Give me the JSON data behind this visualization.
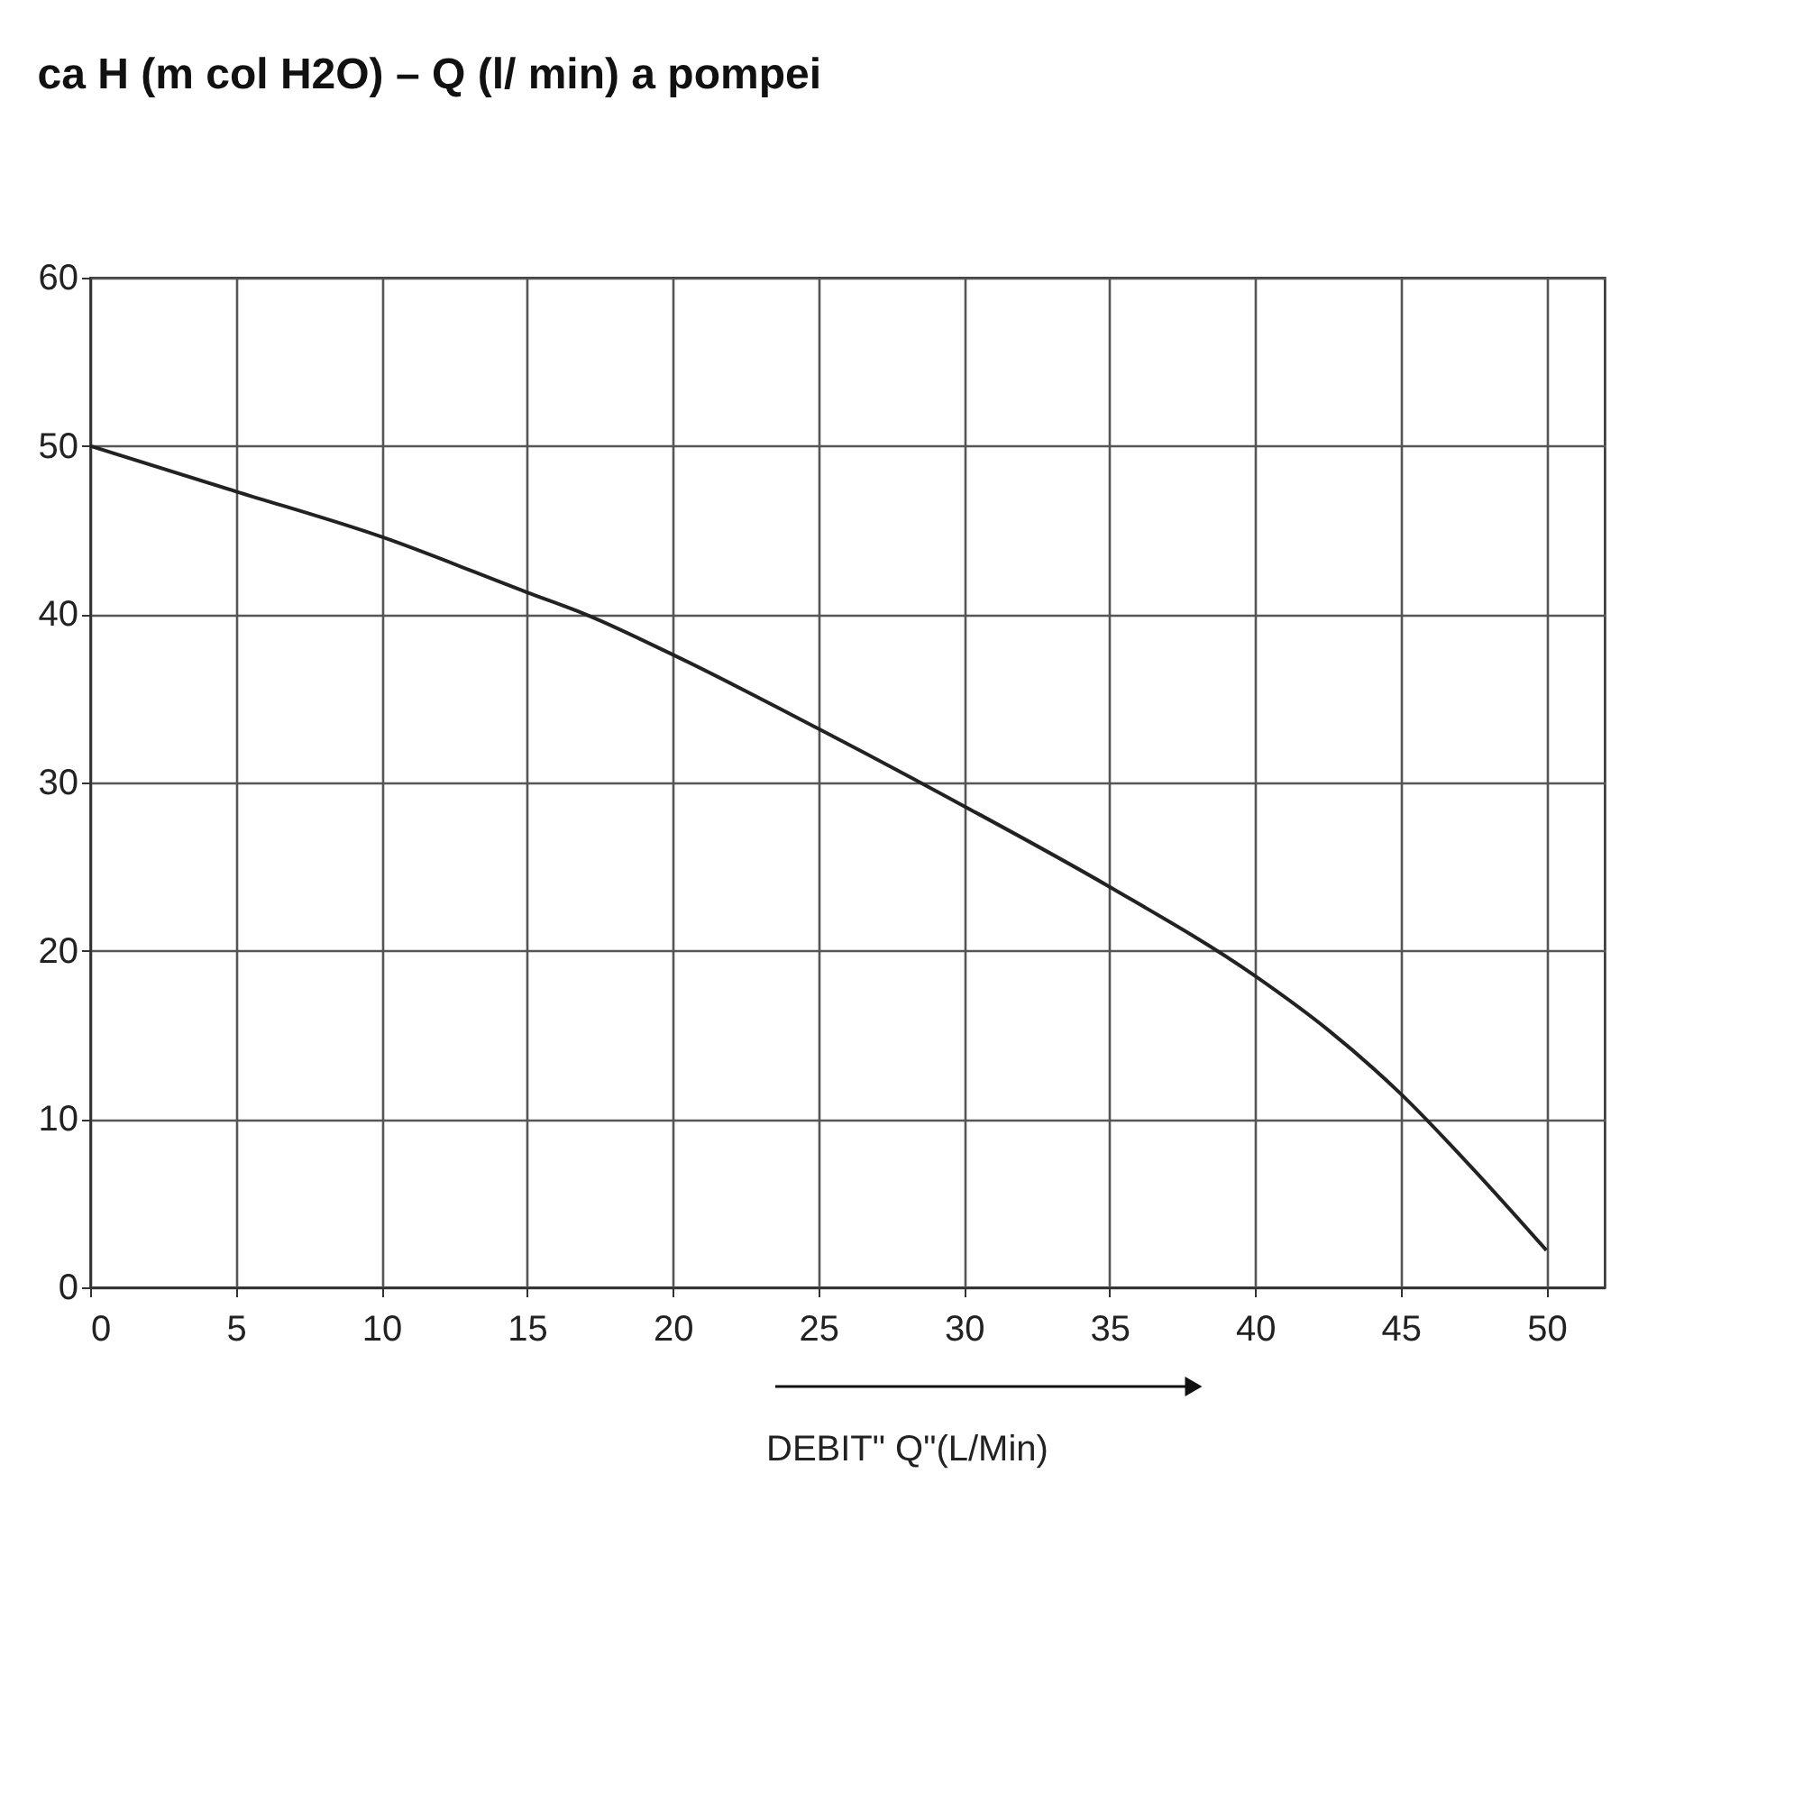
{
  "chart_data": {
    "type": "line",
    "title": "ca H (m col H2O) – Q (l/ min) a pompei",
    "xlabel": "DEBIT\" Q\"(L/Min)",
    "x": [
      0,
      5,
      10,
      15,
      17,
      20,
      25,
      30,
      35,
      40,
      42.5,
      45,
      47.5,
      50
    ],
    "series": [
      {
        "color": "#222222",
        "values": [
          50,
          47.3,
          44.6,
          41.3,
          40,
          37.6,
          33.2,
          28.6,
          23.8,
          18.5,
          15.3,
          11.5,
          7,
          2.2
        ]
      }
    ],
    "xlim": [
      0,
      52
    ],
    "xticks": [
      0,
      5,
      10,
      15,
      20,
      25,
      30,
      35,
      40,
      45,
      50
    ],
    "ylim": [
      0,
      60
    ],
    "yticks": [
      0,
      10,
      20,
      30,
      40,
      50,
      60
    ],
    "grid": true,
    "marker": "none",
    "line_style": "solid"
  }
}
